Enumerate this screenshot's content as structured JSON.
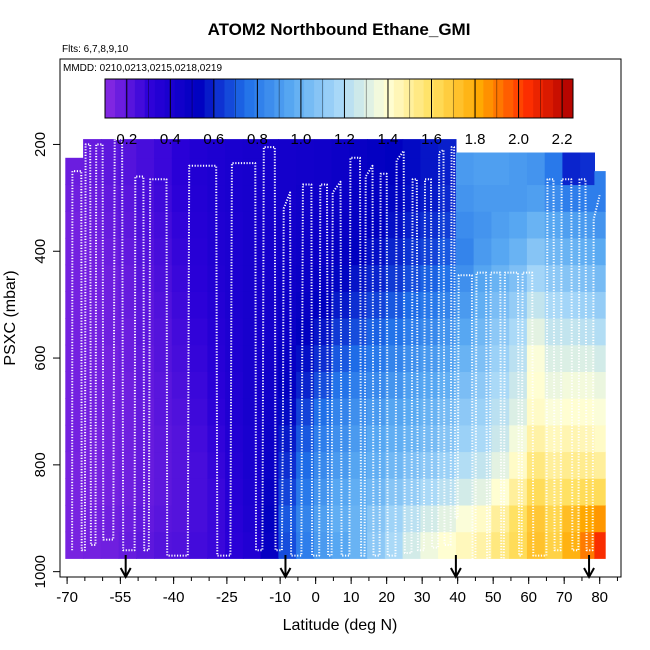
{
  "chart_data": {
    "type": "heatmap",
    "title": "ATOM2 Northbound Ethane_GMI",
    "subtitle_flights": "Flts: 6,7,8,9,10",
    "subtitle_dates": "MMDD: 0210,0213,0215,0218,0219",
    "xlabel": "Latitude (deg N)",
    "ylabel": "PSXC (mbar)",
    "xlim": [
      -72,
      86
    ],
    "ylim": [
      1010,
      40
    ],
    "x_ticks": [
      "-70",
      "-55",
      "-40",
      "-25",
      "-10",
      "0",
      "10",
      "20",
      "30",
      "40",
      "50",
      "60",
      "70",
      "80"
    ],
    "y_ticks": [
      "200",
      "400",
      "600",
      "800",
      "1000"
    ],
    "colorbar": {
      "ticks": [
        "0.2",
        "0.4",
        "0.6",
        "0.8",
        "1.0",
        "1.2",
        "1.4",
        "1.6",
        "1.8",
        "2.0",
        "2.2"
      ],
      "range": [
        0.1,
        2.25
      ],
      "colors": [
        "#8a2be2",
        "#2a00d8",
        "#0000c0",
        "#1f6fe8",
        "#5aaaf2",
        "#a8d8f8",
        "#ffffd8",
        "#ffe060",
        "#ffa800",
        "#ff3000",
        "#b00000"
      ],
      "legend_location": "top"
    },
    "pressure_rows": [
      1000,
      950,
      900,
      850,
      800,
      750,
      700,
      650,
      600,
      550,
      500,
      450,
      400,
      350,
      300,
      250,
      200
    ],
    "columns": [
      {
        "lat": -68,
        "top": 225,
        "values": [
          0.15,
          0.14,
          0.14,
          0.14,
          0.14,
          0.15,
          0.15,
          0.15,
          0.15,
          0.15,
          0.15,
          0.15,
          0.15,
          0.15,
          0.16,
          0.17
        ]
      },
      {
        "lat": -63,
        "top": 190,
        "values": [
          0.16,
          0.15,
          0.15,
          0.14,
          0.14,
          0.14,
          0.15,
          0.15,
          0.15,
          0.15,
          0.15,
          0.15,
          0.15,
          0.16,
          0.17,
          0.18,
          0.18
        ]
      },
      {
        "lat": -58,
        "top": 190,
        "values": [
          0.17,
          0.16,
          0.16,
          0.15,
          0.15,
          0.15,
          0.15,
          0.15,
          0.15,
          0.16,
          0.16,
          0.16,
          0.17,
          0.18,
          0.19,
          0.2,
          0.2
        ]
      },
      {
        "lat": -53,
        "top": 190,
        "values": [
          0.2,
          0.18,
          0.17,
          0.16,
          0.16,
          0.16,
          0.16,
          0.16,
          0.17,
          0.17,
          0.18,
          0.18,
          0.19,
          0.2,
          0.21,
          0.22,
          0.22
        ]
      },
      {
        "lat": -48,
        "top": 190,
        "values": [
          0.22,
          0.2,
          0.19,
          0.18,
          0.18,
          0.18,
          0.18,
          0.19,
          0.19,
          0.2,
          0.2,
          0.21,
          0.22,
          0.23,
          0.24,
          0.25,
          0.25
        ]
      },
      {
        "lat": -43,
        "top": 190,
        "values": [
          0.24,
          0.22,
          0.21,
          0.2,
          0.2,
          0.2,
          0.21,
          0.21,
          0.22,
          0.22,
          0.23,
          0.24,
          0.25,
          0.26,
          0.27,
          0.28,
          0.28
        ]
      },
      {
        "lat": -38,
        "top": 190,
        "values": [
          0.25,
          0.23,
          0.22,
          0.22,
          0.22,
          0.22,
          0.23,
          0.24,
          0.25,
          0.26,
          0.27,
          0.28,
          0.29,
          0.3,
          0.31,
          0.32,
          0.32
        ]
      },
      {
        "lat": -33,
        "top": 190,
        "values": [
          0.27,
          0.26,
          0.25,
          0.25,
          0.25,
          0.26,
          0.27,
          0.28,
          0.29,
          0.3,
          0.31,
          0.32,
          0.33,
          0.34,
          0.35,
          0.36,
          0.36
        ]
      },
      {
        "lat": -28,
        "top": 190,
        "values": [
          0.29,
          0.28,
          0.28,
          0.28,
          0.29,
          0.3,
          0.31,
          0.32,
          0.33,
          0.34,
          0.35,
          0.36,
          0.37,
          0.37,
          0.38,
          0.38,
          0.38
        ]
      },
      {
        "lat": -23,
        "top": 190,
        "values": [
          0.32,
          0.32,
          0.33,
          0.34,
          0.35,
          0.36,
          0.37,
          0.37,
          0.38,
          0.38,
          0.39,
          0.39,
          0.39,
          0.39,
          0.4,
          0.4,
          0.4
        ]
      },
      {
        "lat": -18,
        "top": 190,
        "values": [
          0.36,
          0.36,
          0.38,
          0.39,
          0.4,
          0.4,
          0.41,
          0.41,
          0.41,
          0.41,
          0.41,
          0.41,
          0.41,
          0.41,
          0.41,
          0.41,
          0.41
        ]
      },
      {
        "lat": -13,
        "top": 190,
        "values": [
          0.45,
          0.5,
          0.52,
          0.5,
          0.48,
          0.47,
          0.46,
          0.45,
          0.44,
          0.43,
          0.43,
          0.42,
          0.42,
          0.42,
          0.42,
          0.42,
          0.42
        ]
      },
      {
        "lat": -8,
        "top": 190,
        "values": [
          0.62,
          0.68,
          0.7,
          0.66,
          0.62,
          0.58,
          0.55,
          0.52,
          0.5,
          0.48,
          0.47,
          0.46,
          0.45,
          0.44,
          0.43,
          0.43,
          0.43
        ]
      },
      {
        "lat": -3,
        "top": 190,
        "values": [
          0.75,
          0.8,
          0.82,
          0.78,
          0.74,
          0.7,
          0.66,
          0.6,
          0.56,
          0.53,
          0.5,
          0.48,
          0.47,
          0.46,
          0.45,
          0.44,
          0.44
        ]
      },
      {
        "lat": 2,
        "top": 190,
        "values": [
          0.85,
          0.9,
          0.92,
          0.88,
          0.84,
          0.8,
          0.75,
          0.68,
          0.62,
          0.57,
          0.53,
          0.5,
          0.48,
          0.47,
          0.46,
          0.45,
          0.45
        ]
      },
      {
        "lat": 7,
        "top": 190,
        "values": [
          0.9,
          0.95,
          0.98,
          0.95,
          0.9,
          0.86,
          0.82,
          0.76,
          0.7,
          0.64,
          0.58,
          0.54,
          0.51,
          0.49,
          0.48,
          0.47,
          0.47
        ]
      },
      {
        "lat": 12,
        "top": 190,
        "values": [
          0.95,
          1.0,
          1.0,
          0.98,
          0.94,
          0.9,
          0.86,
          0.8,
          0.74,
          0.68,
          0.62,
          0.57,
          0.53,
          0.51,
          0.5,
          0.49,
          0.49
        ]
      },
      {
        "lat": 17,
        "top": 190,
        "values": [
          1.05,
          1.1,
          1.08,
          1.02,
          0.98,
          0.95,
          0.9,
          0.84,
          0.78,
          0.72,
          0.66,
          0.6,
          0.56,
          0.53,
          0.52,
          0.51,
          0.51
        ]
      },
      {
        "lat": 22,
        "top": 190,
        "values": [
          1.15,
          1.18,
          1.15,
          1.08,
          1.02,
          0.98,
          0.94,
          0.88,
          0.82,
          0.76,
          0.7,
          0.64,
          0.6,
          0.56,
          0.54,
          0.53,
          0.53
        ]
      },
      {
        "lat": 27,
        "top": 190,
        "values": [
          1.25,
          1.28,
          1.22,
          1.12,
          1.06,
          1.0,
          0.96,
          0.92,
          0.86,
          0.8,
          0.74,
          0.68,
          0.63,
          0.59,
          0.56,
          0.55,
          0.55
        ]
      },
      {
        "lat": 32,
        "top": 190,
        "values": [
          1.35,
          1.35,
          1.28,
          1.18,
          1.1,
          1.04,
          1.0,
          0.95,
          0.9,
          0.84,
          0.78,
          0.72,
          0.66,
          0.62,
          0.58,
          0.57,
          0.57
        ]
      },
      {
        "lat": 37,
        "top": 190,
        "values": [
          1.4,
          1.4,
          1.32,
          1.22,
          1.14,
          1.08,
          1.04,
          0.98,
          0.93,
          0.88,
          0.82,
          0.76,
          0.7,
          0.65,
          0.61,
          0.59,
          0.59
        ]
      },
      {
        "lat": 42,
        "top": 215,
        "values": [
          1.42,
          1.44,
          1.38,
          1.28,
          1.2,
          1.14,
          1.1,
          1.05,
          1.0,
          0.95,
          0.9,
          0.86,
          0.82,
          0.85,
          0.88,
          0.9
        ]
      },
      {
        "lat": 47,
        "top": 215,
        "values": [
          1.45,
          1.48,
          1.42,
          1.32,
          1.24,
          1.18,
          1.14,
          1.1,
          1.06,
          1.02,
          0.98,
          0.94,
          0.9,
          0.88,
          0.9,
          0.92
        ]
      },
      {
        "lat": 52,
        "top": 215,
        "values": [
          1.5,
          1.55,
          1.5,
          1.4,
          1.32,
          1.26,
          1.22,
          1.18,
          1.14,
          1.1,
          1.05,
          1.0,
          0.95,
          0.92,
          0.9,
          0.92
        ]
      },
      {
        "lat": 57,
        "top": 215,
        "values": [
          1.55,
          1.62,
          1.6,
          1.5,
          1.42,
          1.36,
          1.3,
          1.26,
          1.22,
          1.18,
          1.12,
          1.06,
          1.0,
          0.95,
          0.9,
          0.9
        ]
      },
      {
        "lat": 62,
        "top": 215,
        "values": [
          1.62,
          1.72,
          1.7,
          1.62,
          1.55,
          1.48,
          1.42,
          1.4,
          1.38,
          1.32,
          1.24,
          1.16,
          1.08,
          1.0,
          0.92,
          0.88
        ]
      },
      {
        "lat": 67,
        "top": 215,
        "values": [
          1.6,
          1.66,
          1.64,
          1.56,
          1.5,
          1.44,
          1.38,
          1.34,
          1.3,
          1.24,
          1.18,
          1.1,
          1.02,
          0.95,
          0.85,
          0.78
        ]
      },
      {
        "lat": 72,
        "top": 215,
        "values": [
          1.7,
          1.78,
          1.74,
          1.6,
          1.52,
          1.46,
          1.4,
          1.36,
          1.3,
          1.24,
          1.16,
          1.08,
          1.0,
          0.92,
          0.8,
          0.6
        ]
      },
      {
        "lat": 77,
        "top": 215,
        "values": [
          1.85,
          1.9,
          1.82,
          1.62,
          1.52,
          1.45,
          1.4,
          1.36,
          1.3,
          1.22,
          1.14,
          1.06,
          0.98,
          0.9,
          0.8,
          0.62
        ]
      },
      {
        "lat": 80,
        "top": 250,
        "values": [
          2.0,
          2.05,
          1.85,
          1.62,
          1.5,
          1.42,
          1.38,
          1.34,
          1.28,
          1.2,
          1.12,
          1.04,
          0.96,
          0.88,
          0.8
        ]
      }
    ],
    "flight_track_points": [
      [
        -68.6,
        960
      ],
      [
        -68.5,
        250
      ],
      [
        -66,
        250
      ],
      [
        -65.9,
        960
      ],
      [
        -65,
        960
      ],
      [
        -64.8,
        200
      ],
      [
        -63.5,
        200
      ],
      [
        -63.3,
        950
      ],
      [
        -62,
        950
      ],
      [
        -61.8,
        200
      ],
      [
        -60,
        200
      ],
      [
        -59.8,
        940
      ],
      [
        -57,
        940
      ],
      [
        -56.6,
        190
      ],
      [
        -54.5,
        190
      ],
      [
        -54.2,
        960
      ],
      [
        -51,
        960
      ],
      [
        -50.8,
        260
      ],
      [
        -48.5,
        260
      ],
      [
        -48.3,
        960
      ],
      [
        -47,
        960
      ],
      [
        -46.6,
        265
      ],
      [
        -42,
        265
      ],
      [
        -41.8,
        970
      ],
      [
        -36,
        970
      ],
      [
        -35.6,
        240
      ],
      [
        -28,
        240
      ],
      [
        -27.7,
        970
      ],
      [
        -24,
        970
      ],
      [
        -23.6,
        235
      ],
      [
        -17,
        235
      ],
      [
        -16.8,
        960
      ],
      [
        -15,
        960
      ],
      [
        -14.6,
        205
      ],
      [
        -11.5,
        205
      ],
      [
        -11.3,
        960
      ],
      [
        -9.5,
        960
      ],
      [
        -9.2,
        690
      ],
      [
        -9,
        320
      ],
      [
        -7.2,
        290
      ],
      [
        -6.9,
        970
      ],
      [
        -4,
        970
      ],
      [
        -3.6,
        275
      ],
      [
        -1.2,
        275
      ],
      [
        -1,
        970
      ],
      [
        1,
        970
      ],
      [
        1.3,
        275
      ],
      [
        3.2,
        275
      ],
      [
        3.5,
        970
      ],
      [
        4.5,
        970
      ],
      [
        4.8,
        290
      ],
      [
        7,
        270
      ],
      [
        7.3,
        970
      ],
      [
        9.5,
        970
      ],
      [
        9.8,
        225
      ],
      [
        12.5,
        225
      ],
      [
        12.8,
        970
      ],
      [
        13.8,
        970
      ],
      [
        14.1,
        260
      ],
      [
        16,
        240
      ],
      [
        16.3,
        970
      ],
      [
        18,
        970
      ],
      [
        18.3,
        255
      ],
      [
        20,
        255
      ],
      [
        20.3,
        970
      ],
      [
        22.5,
        970
      ],
      [
        22.8,
        230
      ],
      [
        24.8,
        212
      ],
      [
        25.1,
        965
      ],
      [
        27,
        965
      ],
      [
        27.3,
        265
      ],
      [
        28.5,
        265
      ],
      [
        28.8,
        960
      ],
      [
        30.5,
        960
      ],
      [
        30.8,
        265
      ],
      [
        32.5,
        265
      ],
      [
        32.8,
        955
      ],
      [
        34.5,
        955
      ],
      [
        34.8,
        215
      ],
      [
        36,
        210
      ],
      [
        36.3,
        950
      ],
      [
        38,
        950
      ],
      [
        38.3,
        205
      ],
      [
        39,
        205
      ],
      [
        39.3,
        900
      ],
      [
        40,
        900
      ],
      [
        40.3,
        445
      ],
      [
        44,
        445
      ],
      [
        44.2,
        990
      ],
      [
        45,
        990
      ],
      [
        45.3,
        440
      ],
      [
        48,
        440
      ],
      [
        48.3,
        990
      ],
      [
        49,
        990
      ],
      [
        49.3,
        440
      ],
      [
        52,
        440
      ],
      [
        52.3,
        990
      ],
      [
        53,
        990
      ],
      [
        53.3,
        440
      ],
      [
        57,
        440
      ],
      [
        57.3,
        970
      ],
      [
        58,
        970
      ],
      [
        58.3,
        440
      ],
      [
        61,
        440
      ],
      [
        61.3,
        970
      ],
      [
        65,
        970
      ],
      [
        65.3,
        265
      ],
      [
        67,
        265
      ],
      [
        67.3,
        960
      ],
      [
        69,
        960
      ],
      [
        69.3,
        265
      ],
      [
        72,
        265
      ],
      [
        72.3,
        960
      ],
      [
        74,
        960
      ],
      [
        74.3,
        265
      ],
      [
        76,
        265
      ],
      [
        76.3,
        960
      ],
      [
        78,
        960
      ],
      [
        78.3,
        340
      ],
      [
        80,
        295
      ]
    ],
    "arrows": [
      {
        "lat": -53.5
      },
      {
        "lat": -8.5
      },
      {
        "lat": 39.5
      },
      {
        "lat": 77
      }
    ]
  }
}
